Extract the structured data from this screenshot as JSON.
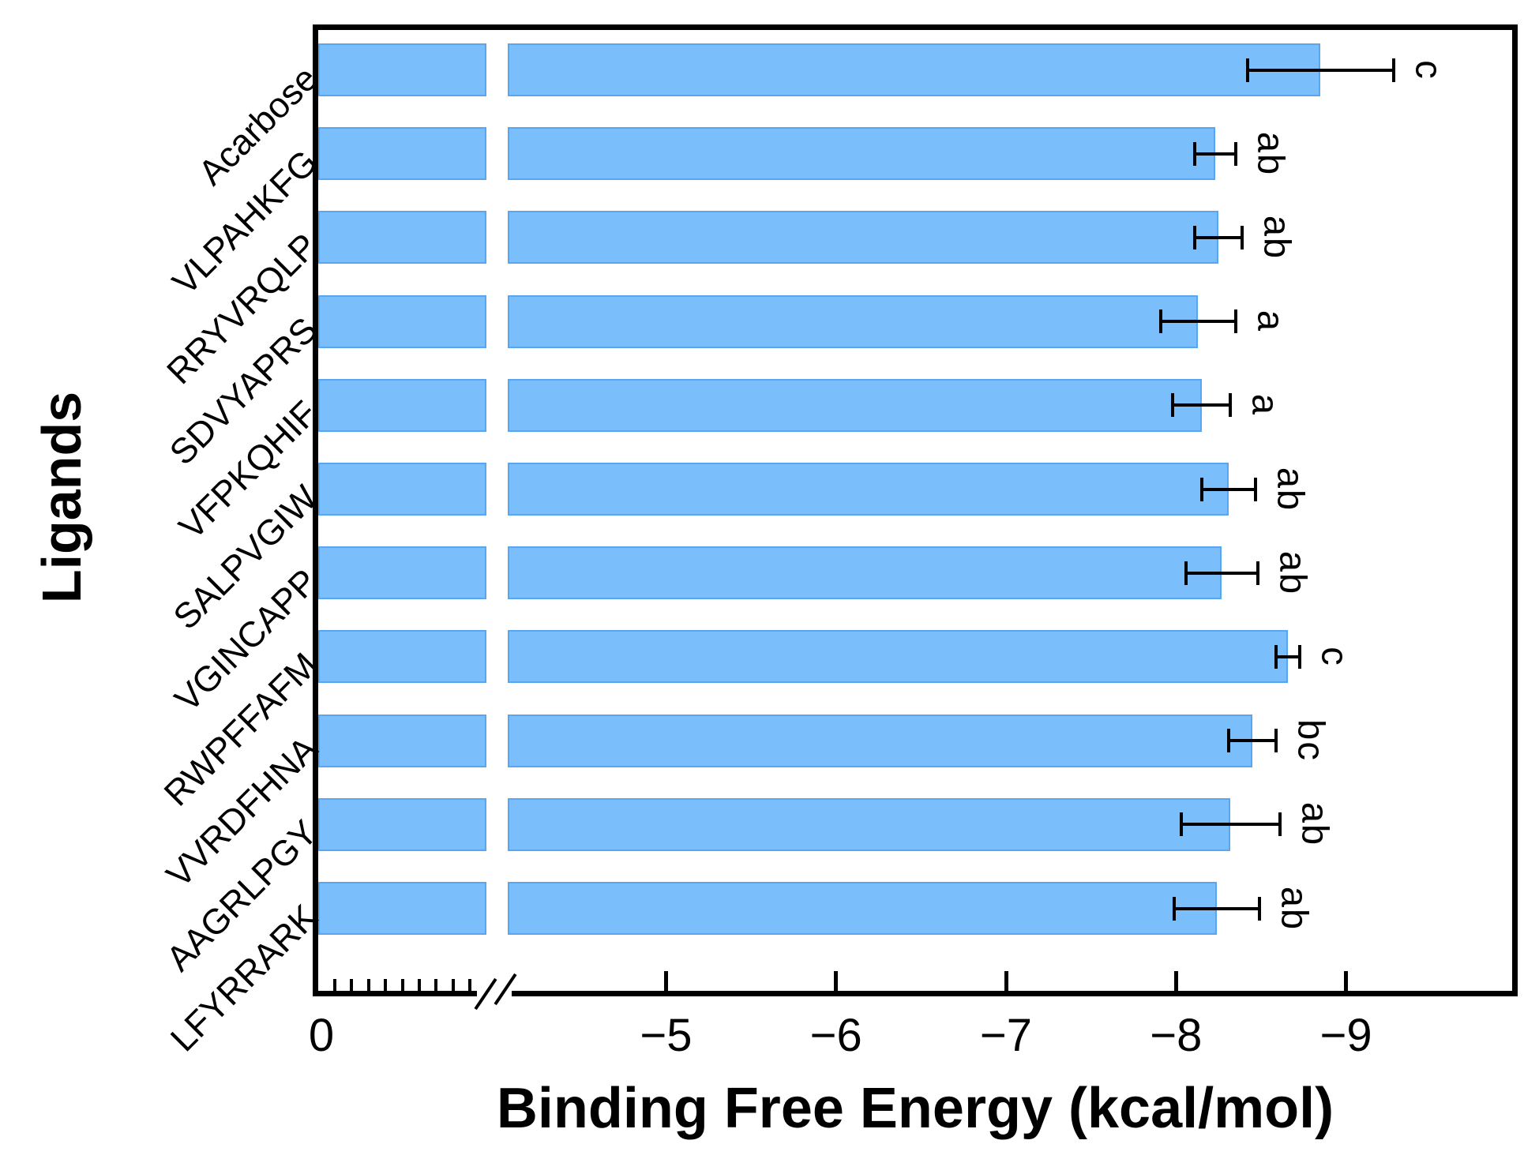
{
  "chart_data": {
    "type": "bar",
    "orientation": "horizontal",
    "xlabel": "Binding Free Energy (kcal/mol)",
    "ylabel": "Ligands",
    "categories": [
      "Acarbose",
      "VLPAHKFG",
      "RRYVRQLP",
      "SDVYAPRS",
      "VFPKQHIF",
      "SALPVGIW",
      "VGINCAPP",
      "RWPFFAFM",
      "VVRDFHNA",
      "AAGRLPGY",
      "LFYRRARK"
    ],
    "values": [
      -8.85,
      -8.23,
      -8.25,
      -8.13,
      -8.15,
      -8.31,
      -8.27,
      -8.66,
      -8.45,
      -8.32,
      -8.24
    ],
    "errors": [
      0.43,
      0.12,
      0.14,
      0.22,
      0.17,
      0.16,
      0.21,
      0.07,
      0.14,
      0.29,
      0.25
    ],
    "sig_letters": [
      "c",
      "ab",
      "ab",
      "a",
      "a",
      "ab",
      "ab",
      "c",
      "bc",
      "ab",
      "ab"
    ],
    "x_ticks": [
      0,
      -5,
      -6,
      -7,
      -8,
      -9
    ],
    "x_tick_labels": [
      "0",
      "−5",
      "−6",
      "−7",
      "−8",
      "−9"
    ],
    "axis_break": {
      "between": [
        0,
        -4.1
      ]
    },
    "grid": false,
    "legend": null,
    "colors": {
      "bar_fill": "#7bbefc",
      "bar_edge": "#58a6f2",
      "axis": "#000000",
      "text": "#000000"
    }
  }
}
